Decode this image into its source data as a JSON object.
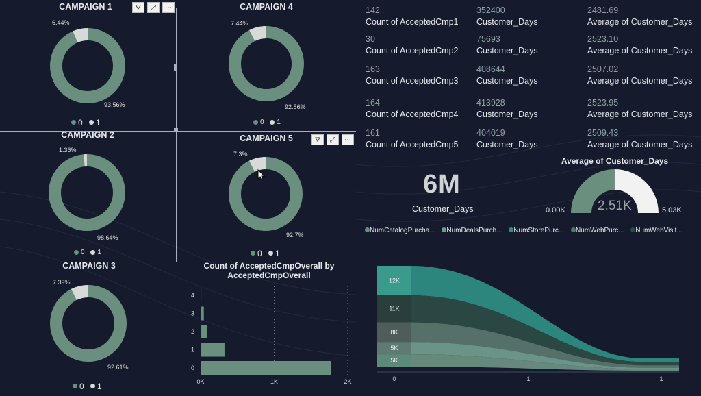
{
  "colors": {
    "bg": "#151b2c",
    "primary": "#6b8f7f",
    "secondary": "#d9d9d9",
    "teal": "#2e8c82",
    "teal_dark": "#2b4a46"
  },
  "donuts": [
    {
      "title": "CAMPAIGN 1",
      "pct_small": "6.44%",
      "pct_big": "93.56%",
      "value_small": 6.44,
      "legend": [
        "0",
        "1"
      ]
    },
    {
      "title": "CAMPAIGN 4",
      "pct_small": "7.44%",
      "pct_big": "92.56%",
      "value_small": 7.44,
      "legend": [
        "0",
        "1"
      ]
    },
    {
      "title": "CAMPAIGN 2",
      "pct_small": "1.36%",
      "pct_big": "98.64%",
      "value_small": 1.36,
      "legend": [
        "0",
        "1"
      ]
    },
    {
      "title": "CAMPAIGN 5",
      "pct_small": "7.3%",
      "pct_big": "92.7%",
      "value_small": 7.3,
      "legend": [
        "0",
        "1"
      ]
    },
    {
      "title": "CAMPAIGN 3",
      "pct_small": "7.39%",
      "pct_big": "92.61%",
      "value_small": 7.39,
      "legend": [
        "0",
        "1"
      ]
    }
  ],
  "cards": [
    {
      "count": "142",
      "count_label": "Count of AcceptedCmp1",
      "days": "352400",
      "days_label": "Customer_Days",
      "avg": "2481.69",
      "avg_label": "Average of Customer_Days"
    },
    {
      "count": "30",
      "count_label": "Count of AcceptedCmp2",
      "days": "75693",
      "days_label": "Customer_Days",
      "avg": "2523.10",
      "avg_label": "Average of Customer_Days"
    },
    {
      "count": "163",
      "count_label": "Count of AcceptedCmp3",
      "days": "408644",
      "days_label": "Customer_Days",
      "avg": "2507.02",
      "avg_label": "Average of Customer_Days"
    },
    {
      "count": "164",
      "count_label": "Count of AcceptedCmp4",
      "days": "413928",
      "days_label": "Customer_Days",
      "avg": "2523.95",
      "avg_label": "Average of Customer_Days"
    },
    {
      "count": "161",
      "count_label": "Count of AcceptedCmp5",
      "days": "404019",
      "days_label": "Customer_Days",
      "avg": "2509.43",
      "avg_label": "Average of Customer_Days"
    }
  ],
  "kpi": {
    "value": "6M",
    "label": "Customer_Days"
  },
  "gauge": {
    "title": "Average of Customer_Days",
    "value_label": "2.51K",
    "min_label": "0.00K",
    "max_label": "5.03K",
    "value": 2.51,
    "min": 0,
    "max": 5.03
  },
  "legend_bottom": [
    "NumCatalogPurcha...",
    "NumDealsPurch...",
    "NumStorePurc...",
    "NumWebPurc...",
    "NumWebVisit..."
  ],
  "chart_data": [
    {
      "type": "bar",
      "title": "Count of AcceptedCmpOverall by AcceptedCmpOverall",
      "categories": [
        "4",
        "3",
        "2",
        "1",
        "0"
      ],
      "values": [
        10,
        44,
        89,
        325,
        1777
      ],
      "xticks": [
        "0K",
        "1K",
        "2K"
      ],
      "xlim": [
        0,
        2000
      ]
    },
    {
      "type": "area",
      "categories": [
        "0",
        "1",
        "1"
      ],
      "series": [
        {
          "name": "NumCatalogPurcha...",
          "label": "12K",
          "value": 12
        },
        {
          "name": "NumDealsPurch...",
          "label": "11K",
          "value": 11
        },
        {
          "name": "NumStorePurc...",
          "label": "8K",
          "value": 8
        },
        {
          "name": "NumWebPurc...",
          "label": "5K",
          "value": 5
        },
        {
          "name": "NumWebVisit...",
          "label": "5K",
          "value": 5
        }
      ]
    }
  ]
}
